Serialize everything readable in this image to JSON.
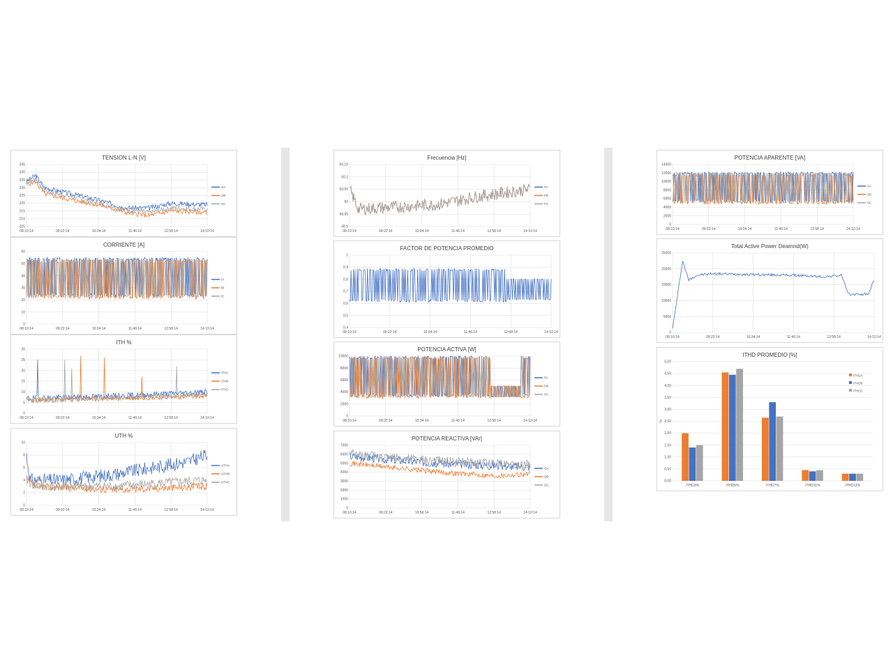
{
  "colors": {
    "A": "#4472c4",
    "B": "#ed7d31",
    "C": "#a5a5a5"
  },
  "charts": [
    {
      "id": "tension",
      "title": "TENSION L-N [V]",
      "type": "line",
      "x_labels": [
        "08:10:14",
        "09:22:14",
        "10:34:14",
        "11:46:14",
        "12:58:14",
        "14:10:14"
      ],
      "y_ticks": [
        205,
        210,
        215,
        220,
        225,
        230,
        235,
        240,
        245
      ],
      "ylim": [
        205,
        245
      ],
      "series": [
        {
          "name": "UA",
          "color": "#4472c4",
          "profile": [
            [
              0,
              234
            ],
            [
              0.05,
              238
            ],
            [
              0.1,
              230
            ],
            [
              0.25,
              226
            ],
            [
              0.4,
              222
            ],
            [
              0.55,
              217
            ],
            [
              0.68,
              217
            ],
            [
              0.8,
              220
            ],
            [
              1,
              219
            ]
          ],
          "noise": 1.6,
          "seed": 3
        },
        {
          "name": "UB",
          "color": "#ed7d31",
          "profile": [
            [
              0,
              232
            ],
            [
              0.05,
              234
            ],
            [
              0.1,
              226
            ],
            [
              0.25,
              222
            ],
            [
              0.4,
              219
            ],
            [
              0.55,
              214
            ],
            [
              0.68,
              212
            ],
            [
              0.8,
              215
            ],
            [
              1,
              214
            ]
          ],
          "noise": 1.6,
          "seed": 5
        },
        {
          "name": "UC",
          "color": "#a5a5a5",
          "profile": [
            [
              0,
              233
            ],
            [
              0.05,
              236
            ],
            [
              0.1,
              228
            ],
            [
              0.25,
              224
            ],
            [
              0.4,
              220
            ],
            [
              0.55,
              216
            ],
            [
              0.68,
              214
            ],
            [
              0.8,
              217
            ],
            [
              1,
              216
            ]
          ],
          "noise": 1.6,
          "seed": 7
        }
      ]
    },
    {
      "id": "corriente",
      "title": "CORRIENTE [A]",
      "type": "line",
      "x_labels": [
        "08:10:14",
        "09:22:14",
        "10:34:14",
        "11:46:14",
        "12:58:14",
        "14:10:14"
      ],
      "y_ticks": [
        0,
        10,
        20,
        30,
        40,
        50,
        60
      ],
      "ylim": [
        0,
        60
      ],
      "series": [
        {
          "name": "IA",
          "color": "#4472c4",
          "profile": [
            [
              0,
              24
            ],
            [
              1,
              24
            ]
          ],
          "osc": [
            24,
            54
          ],
          "switch": 0.55,
          "seed": 11
        },
        {
          "name": "IB",
          "color": "#ed7d31",
          "profile": [
            [
              0,
              22
            ],
            [
              1,
              22
            ]
          ],
          "osc": [
            22,
            52
          ],
          "switch": 0.55,
          "seed": 13
        },
        {
          "name": "IC",
          "color": "#a5a5a5",
          "profile": [
            [
              0,
              23
            ],
            [
              1,
              23
            ]
          ],
          "osc": [
            23,
            53
          ],
          "switch": 0.55,
          "seed": 17
        }
      ]
    },
    {
      "id": "ith",
      "title": "ITH %",
      "type": "line",
      "x_labels": [
        "08:10:14",
        "09:22:14",
        "10:34:14",
        "11:46:14",
        "12:58:14",
        "14:10:14"
      ],
      "y_ticks": [
        0,
        5,
        10,
        15,
        20,
        25,
        30
      ],
      "ylim": [
        0,
        30
      ],
      "series": [
        {
          "name": "ITHA",
          "color": "#4472c4",
          "profile": [
            [
              0,
              7
            ],
            [
              0.5,
              8
            ],
            [
              1,
              10
            ]
          ],
          "noise": 1.4,
          "spikes": [
            [
              0.06,
              25
            ]
          ],
          "seed": 19
        },
        {
          "name": "ITHB",
          "color": "#ed7d31",
          "profile": [
            [
              0,
              6
            ],
            [
              0.5,
              7
            ],
            [
              1,
              8
            ]
          ],
          "noise": 1.2,
          "spikes": [
            [
              0.3,
              27
            ],
            [
              0.43,
              26
            ],
            [
              0.64,
              17
            ]
          ],
          "seed": 23
        },
        {
          "name": "ITHC",
          "color": "#a5a5a5",
          "profile": [
            [
              0,
              6
            ],
            [
              0.5,
              7
            ],
            [
              1,
              9
            ]
          ],
          "noise": 1.2,
          "spikes": [
            [
              0.21,
              25
            ],
            [
              0.25,
              21
            ],
            [
              0.83,
              22
            ]
          ],
          "seed": 29
        }
      ]
    },
    {
      "id": "uth",
      "title": "UTH %",
      "type": "line",
      "x_labels": [
        "08:10:14",
        "09:22:14",
        "10:34:14",
        "11:46:14",
        "12:58:14",
        "14:10:14"
      ],
      "y_ticks": [
        0,
        2,
        4,
        6,
        8,
        10
      ],
      "ylim": [
        0,
        10
      ],
      "series": [
        {
          "name": "UTHA",
          "color": "#4472c4",
          "profile": [
            [
              0,
              8
            ],
            [
              0.02,
              4
            ],
            [
              0.2,
              4
            ],
            [
              0.5,
              5
            ],
            [
              0.7,
              6
            ],
            [
              0.9,
              7
            ],
            [
              1,
              8
            ]
          ],
          "noise": 1.1,
          "seed": 31
        },
        {
          "name": "UTHB",
          "color": "#ed7d31",
          "profile": [
            [
              0,
              4
            ],
            [
              0.05,
              3
            ],
            [
              0.5,
              2.5
            ],
            [
              1,
              3
            ]
          ],
          "noise": 0.6,
          "seed": 37
        },
        {
          "name": "UTHC",
          "color": "#a5a5a5",
          "profile": [
            [
              0,
              4
            ],
            [
              0.05,
              3
            ],
            [
              0.5,
              3
            ],
            [
              1,
              4
            ]
          ],
          "noise": 0.8,
          "seed": 41
        }
      ]
    },
    {
      "id": "frecuencia",
      "title": "Frecuencia [Hz]",
      "type": "line",
      "x_labels": [
        "08:10:14",
        "09:22:14",
        "10:34:14",
        "11:46:14",
        "12:58:14",
        "14:10:14"
      ],
      "y_ticks": [
        49.9,
        49.95,
        50,
        50.05,
        50.1,
        50.15
      ],
      "y_tick_labels": [
        "49,9",
        "49,95",
        "50",
        "50,05",
        "50,1",
        "50,15"
      ],
      "ylim": [
        49.9,
        50.15
      ],
      "series": [
        {
          "name": "FA",
          "color": "#4472c4",
          "profile": [
            [
              0,
              50.05
            ],
            [
              0.05,
              49.97
            ],
            [
              0.3,
              49.98
            ],
            [
              0.5,
              49.99
            ],
            [
              0.7,
              50.02
            ],
            [
              1,
              50.05
            ]
          ],
          "noise": 0.025,
          "seed": 43,
          "shared": true
        },
        {
          "name": "FB",
          "color": "#ed7d31",
          "profile": [
            [
              0,
              50.05
            ],
            [
              0.05,
              49.97
            ],
            [
              0.3,
              49.98
            ],
            [
              0.5,
              49.99
            ],
            [
              0.7,
              50.02
            ],
            [
              1,
              50.05
            ]
          ],
          "noise": 0.025,
          "seed": 43,
          "shared": true
        },
        {
          "name": "FC",
          "color": "#a5a5a5",
          "profile": [
            [
              0,
              50.05
            ],
            [
              0.05,
              49.97
            ],
            [
              0.3,
              49.98
            ],
            [
              0.5,
              49.99
            ],
            [
              0.7,
              50.02
            ],
            [
              1,
              50.05
            ]
          ],
          "noise": 0.025,
          "seed": 43,
          "shared": true
        }
      ]
    },
    {
      "id": "fp",
      "title": "FACTOR DE POTENCIA PROMEDIO",
      "type": "line",
      "x_labels": [
        "08:10:14",
        "09:22:14",
        "10:34:14",
        "11:46:14",
        "12:58:14",
        "14:10:14"
      ],
      "y_ticks": [
        0.4,
        0.5,
        0.6,
        0.7,
        0.8,
        0.9,
        1
      ],
      "y_tick_labels": [
        "0,4",
        "0,5",
        "0,6",
        "0,7",
        "0,8",
        "0,9",
        "1"
      ],
      "ylim": [
        0.4,
        1
      ],
      "series": [
        {
          "name": "",
          "color": "#4472c4",
          "profile": [
            [
              0,
              0.83
            ],
            [
              1,
              0.83
            ]
          ],
          "osc": [
            0.62,
            0.88
          ],
          "switch": 0.6,
          "seed": 47
        }
      ]
    },
    {
      "id": "pactiva",
      "title": "POTENCIA ACTIVA [W]",
      "type": "line",
      "x_labels": [
        "08:10:14",
        "09:22:14",
        "10:34:14",
        "11:46:14",
        "12:58:14",
        "14:10:14"
      ],
      "y_ticks": [
        0,
        2000,
        4000,
        6000,
        8000,
        10000
      ],
      "ylim": [
        0,
        10000
      ],
      "series": [
        {
          "name": "PA",
          "color": "#4472c4",
          "profile": [
            [
              0,
              9000
            ],
            [
              1,
              9000
            ]
          ],
          "osc": [
            3500,
            9800
          ],
          "switch": 0.55,
          "seed": 53
        },
        {
          "name": "PB",
          "color": "#ed7d31",
          "profile": [
            [
              0,
              9000
            ],
            [
              1,
              9000
            ]
          ],
          "osc": [
            3200,
            9600
          ],
          "switch": 0.55,
          "seed": 59
        },
        {
          "name": "PC",
          "color": "#a5a5a5",
          "profile": [
            [
              0,
              9000
            ],
            [
              1,
              9000
            ]
          ],
          "osc": [
            3300,
            9700
          ],
          "switch": 0.55,
          "seed": 61
        }
      ]
    },
    {
      "id": "preactiva",
      "title": "POTENCIA REACTIVA [VAr]",
      "type": "line",
      "x_labels": [
        "08:10:14",
        "09:22:14",
        "10:56:14",
        "11:46:14",
        "12:58:14",
        "14:10:14"
      ],
      "y_ticks": [
        0,
        1000,
        2000,
        3000,
        4000,
        5000,
        6000,
        7000
      ],
      "ylim": [
        0,
        7000
      ],
      "series": [
        {
          "name": "QA",
          "color": "#4472c4",
          "profile": [
            [
              0,
              5800
            ],
            [
              0.5,
              5000
            ],
            [
              1,
              4600
            ]
          ],
          "noise": 500,
          "seed": 67
        },
        {
          "name": "QB",
          "color": "#ed7d31",
          "profile": [
            [
              0,
              5000
            ],
            [
              0.5,
              4000
            ],
            [
              0.8,
              3600
            ],
            [
              1,
              3800
            ]
          ],
          "noise": 300,
          "seed": 71
        },
        {
          "name": "QC",
          "color": "#a5a5a5",
          "profile": [
            [
              0,
              6000
            ],
            [
              0.5,
              5200
            ],
            [
              1,
              4800
            ]
          ],
          "noise": 550,
          "seed": 73
        }
      ]
    },
    {
      "id": "paparente",
      "title": "POTENCIA APARENTE [VA]",
      "type": "line",
      "x_labels": [
        "08:10:14",
        "09:22:14",
        "10:34:14",
        "11:46:14",
        "12:58:14",
        "14:10:14"
      ],
      "y_ticks": [
        0,
        2000,
        4000,
        6000,
        8000,
        10000,
        12000,
        14000
      ],
      "ylim": [
        0,
        14000
      ],
      "series": [
        {
          "name": "SA",
          "color": "#4472c4",
          "profile": [
            [
              0,
              6000
            ],
            [
              1,
              6000
            ]
          ],
          "osc": [
            5500,
            12000
          ],
          "switch": 0.55,
          "seed": 79
        },
        {
          "name": "SB",
          "color": "#ed7d31",
          "profile": [
            [
              0,
              5500
            ],
            [
              1,
              5000
            ]
          ],
          "osc": [
            5000,
            11500
          ],
          "switch": 0.4,
          "seed": 83
        },
        {
          "name": "SC",
          "color": "#a5a5a5",
          "profile": [
            [
              0,
              6000
            ],
            [
              1,
              6000
            ]
          ],
          "osc": [
            5200,
            11800
          ],
          "switch": 0.55,
          "seed": 89
        }
      ]
    },
    {
      "id": "totalactive",
      "title": "Total Active Power Deamnd(W)",
      "type": "line",
      "x_labels": [
        "08:10:14",
        "09:22:14",
        "10:34:14",
        "11:46:14",
        "12:58:14",
        "14:10:14"
      ],
      "y_ticks": [
        0,
        5000,
        10000,
        15000,
        20000,
        25000
      ],
      "ylim": [
        0,
        25000
      ],
      "series": [
        {
          "name": "",
          "color": "#4472c4",
          "profile": [
            [
              0,
              1000
            ],
            [
              0.05,
              22500
            ],
            [
              0.08,
              16500
            ],
            [
              0.12,
              18000
            ],
            [
              0.2,
              18500
            ],
            [
              0.4,
              18200
            ],
            [
              0.6,
              18000
            ],
            [
              0.75,
              17500
            ],
            [
              0.84,
              18000
            ],
            [
              0.87,
              12000
            ],
            [
              0.97,
              12000
            ],
            [
              1,
              16500
            ]
          ],
          "noise": 400,
          "seed": 97
        }
      ]
    },
    {
      "id": "ithd",
      "title": "ITHD PROMEDIO [%]",
      "type": "bar",
      "ylabel": "%",
      "categories": [
        "ITHD3%",
        "ITHD5%",
        "ITHD7%",
        "ITHD11%",
        "ITHD13%"
      ],
      "y_ticks": [
        0,
        0.5,
        1,
        1.5,
        2,
        2.5,
        3,
        3.5,
        4,
        4.5,
        5
      ],
      "y_tick_labels": [
        "0,00",
        "0,50",
        "1,00",
        "1,50",
        "2,00",
        "2,50",
        "3,00",
        "3,50",
        "4,00",
        "4,50",
        "5,00"
      ],
      "ylim": [
        0,
        5
      ],
      "series": [
        {
          "name": "ITHDA",
          "color": "#ed7d31",
          "values": [
            2,
            4.55,
            2.65,
            0.45,
            0.3
          ]
        },
        {
          "name": "ITHDB",
          "color": "#4472c4",
          "values": [
            1.4,
            4.45,
            3.3,
            0.4,
            0.3
          ]
        },
        {
          "name": "ITHDC",
          "color": "#a5a5a5",
          "values": [
            1.5,
            4.7,
            2.7,
            0.45,
            0.3
          ]
        }
      ]
    }
  ]
}
